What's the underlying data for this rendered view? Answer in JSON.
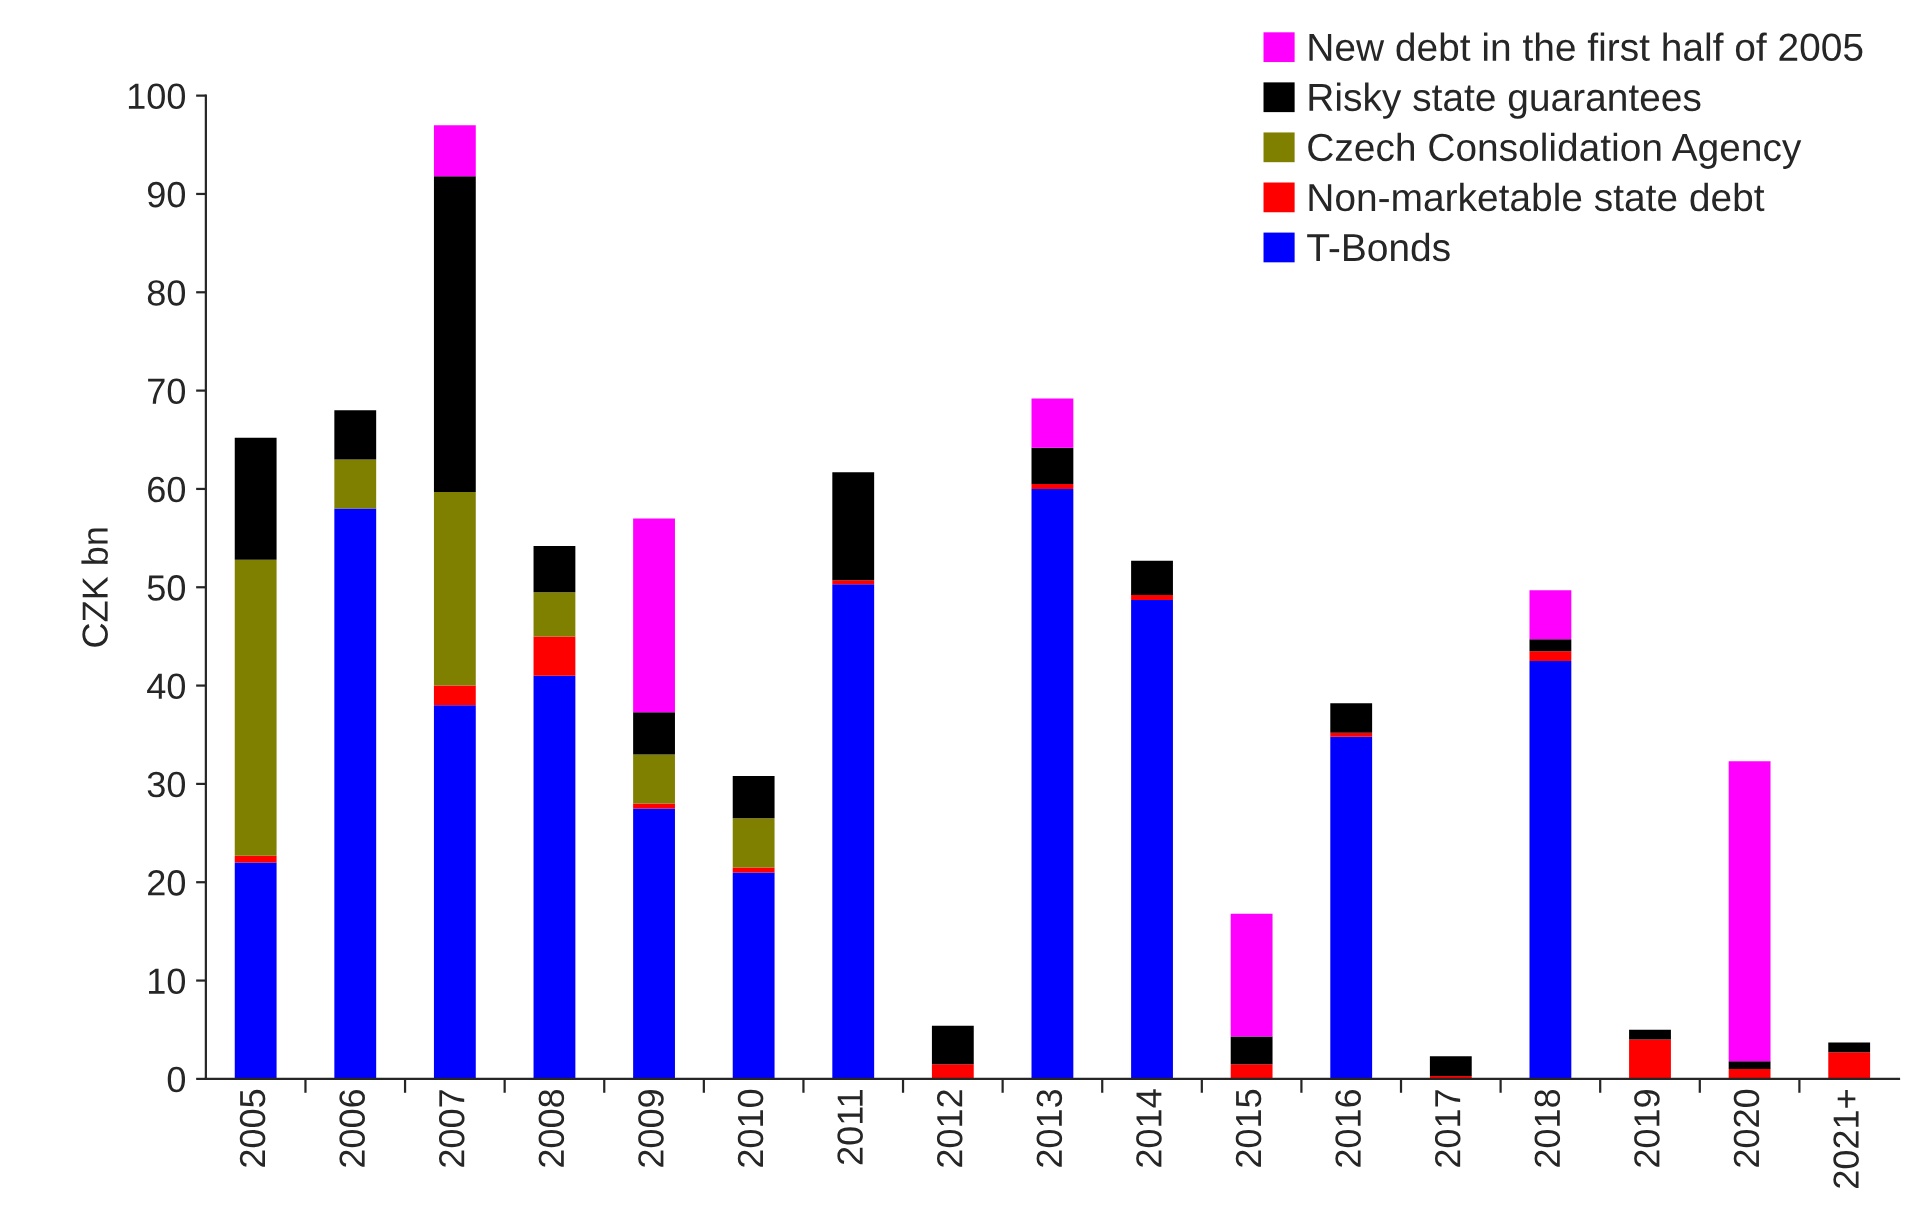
{
  "chart_data": {
    "type": "bar",
    "stacked": true,
    "ylabel": "CZK bn",
    "categories": [
      "2005",
      "2006",
      "2007",
      "2008",
      "2009",
      "2010",
      "2011",
      "2012",
      "2013",
      "2014",
      "2015",
      "2016",
      "2017",
      "2018",
      "2019",
      "2020",
      "2021+"
    ],
    "series": [
      {
        "name": "T-Bonds",
        "color": "#0000ff",
        "values": [
          22,
          58,
          38,
          41,
          27.5,
          21,
          50.3,
          null,
          60,
          48.7,
          null,
          34.8,
          null,
          42.5,
          null,
          null,
          null
        ]
      },
      {
        "name": "Non-marketable state debt",
        "color": "#ff0000",
        "values": [
          0.7,
          null,
          2,
          4,
          0.5,
          0.5,
          0.4,
          1.5,
          0.5,
          0.5,
          1.5,
          0.4,
          0.3,
          1,
          4,
          1,
          2.7
        ]
      },
      {
        "name": "Czech Consolidation Agency",
        "color": "#808000",
        "values": [
          30.1,
          5,
          19.7,
          4.5,
          5,
          5,
          null,
          null,
          null,
          null,
          null,
          null,
          null,
          null,
          null,
          null,
          null
        ]
      },
      {
        "name": "Risky state guarantees",
        "color": "#000000",
        "values": [
          12.4,
          5,
          32.1,
          4.7,
          4.3,
          4.3,
          11,
          3.9,
          3.7,
          3.5,
          2.8,
          3,
          2,
          1.2,
          1,
          0.8,
          1
        ]
      },
      {
        "name": "New debt in the first half of 2005",
        "color": "#ff00ff",
        "values": [
          null,
          null,
          5.2,
          null,
          19.7,
          null,
          null,
          null,
          5,
          null,
          12.5,
          null,
          null,
          5,
          null,
          30.5,
          null
        ]
      }
    ],
    "ylim": [
      0,
      100
    ],
    "yticks": [
      0,
      10,
      20,
      30,
      40,
      50,
      60,
      70,
      80,
      90,
      100
    ],
    "grid": false,
    "legend": "top right"
  }
}
